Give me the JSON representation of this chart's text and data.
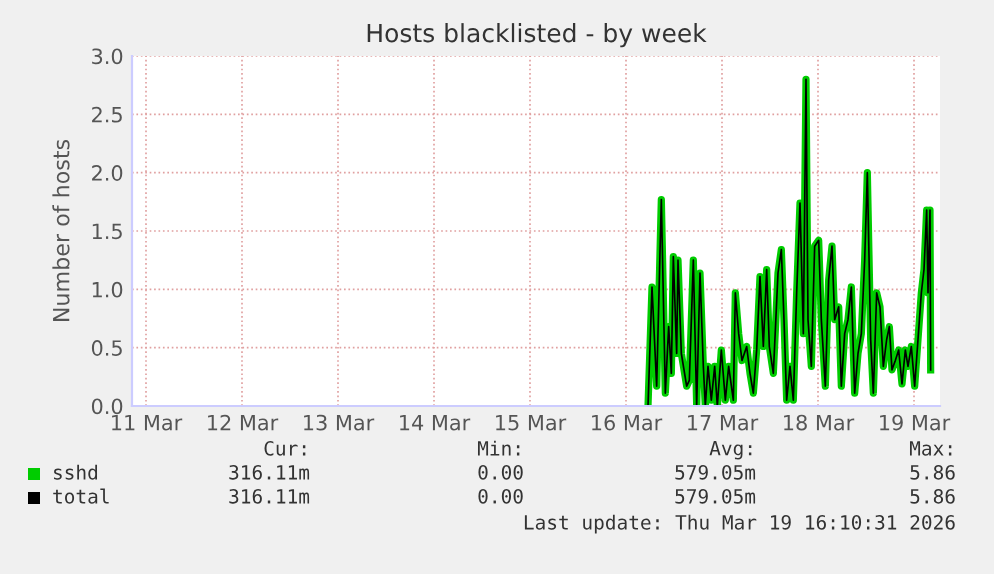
{
  "chart_data": {
    "type": "line",
    "title": "Hosts blacklisted - by week",
    "ylabel": "Number of hosts",
    "x": [
      "2026-03-16T17:30",
      "2026-03-16T18:30",
      "2026-03-16T19:40",
      "2026-03-16T20:50",
      "2026-03-16T21:50",
      "2026-03-16T22:40",
      "2026-03-16T23:20",
      "2026-03-16T23:50",
      "2026-03-17T00:40",
      "2026-03-17T01:00",
      "2026-03-17T01:50",
      "2026-03-17T03:10",
      "2026-03-17T03:50",
      "2026-03-17T04:50",
      "2026-03-17T05:40",
      "2026-03-17T06:30",
      "2026-03-17T07:20",
      "2026-03-17T07:50",
      "2026-03-17T08:30",
      "2026-03-17T09:20",
      "2026-03-17T10:10",
      "2026-03-17T10:50",
      "2026-03-17T11:50",
      "2026-03-17T12:50",
      "2026-03-17T13:40",
      "2026-03-17T14:50",
      "2026-03-17T15:20",
      "2026-03-17T16:10",
      "2026-03-17T17:00",
      "2026-03-17T18:10",
      "2026-03-17T19:00",
      "2026-03-17T19:50",
      "2026-03-17T20:40",
      "2026-03-17T21:30",
      "2026-03-17T22:20",
      "2026-03-17T23:10",
      "2026-03-17T23:50",
      "2026-03-18T00:50",
      "2026-03-18T02:00",
      "2026-03-18T02:50",
      "2026-03-18T03:30",
      "2026-03-18T04:10",
      "2026-03-18T05:00",
      "2026-03-18T05:50",
      "2026-03-18T06:40",
      "2026-03-18T07:30",
      "2026-03-18T08:20",
      "2026-03-18T09:00",
      "2026-03-18T09:30",
      "2026-03-18T10:20",
      "2026-03-18T11:10",
      "2026-03-18T12:10",
      "2026-03-18T12:50",
      "2026-03-18T13:50",
      "2026-03-18T14:40",
      "2026-03-18T15:30",
      "2026-03-18T16:10",
      "2026-03-18T17:10",
      "2026-03-18T17:50",
      "2026-03-18T18:40",
      "2026-03-18T19:30",
      "2026-03-18T20:20",
      "2026-03-18T21:10",
      "2026-03-18T22:00",
      "2026-03-18T22:50",
      "2026-03-18T23:40",
      "2026-03-19T00:20",
      "2026-03-19T01:10",
      "2026-03-19T01:50",
      "2026-03-19T02:40",
      "2026-03-19T03:30",
      "2026-03-19T04:20",
      "2026-03-19T05:10",
      "2026-03-19T05:50",
      "2026-03-19T06:30",
      "2026-03-19T07:20",
      "2026-03-19T08:10",
      "2026-03-19T09:00",
      "2026-03-19T09:50",
      "2026-03-19T10:30",
      "2026-03-19T11:20",
      "2026-03-19T12:10",
      "2026-03-19T13:00",
      "2026-03-19T13:50",
      "2026-03-19T14:30",
      "2026-03-19T15:10",
      "2026-03-19T15:30",
      "2026-03-19T16:00",
      "2026-03-19T16:10"
    ],
    "series": [
      {
        "name": "sshd",
        "color": "#00cc00",
        "values": [
          0,
          1.02,
          0.17,
          1.77,
          0.11,
          0.68,
          0.28,
          1.28,
          0.45,
          1.25,
          0.45,
          0.17,
          0.22,
          1.25,
          0,
          1.14,
          0.34,
          0,
          0.34,
          0.05,
          0.34,
          0,
          0.48,
          0.05,
          0.34,
          0.05,
          0.97,
          0.62,
          0.39,
          0.51,
          0.28,
          0.11,
          0.48,
          1.11,
          0.51,
          1.17,
          0.51,
          0.28,
          1.14,
          1.34,
          0.74,
          0.05,
          0.34,
          0.05,
          0.97,
          1.74,
          0.62,
          2.8,
          0.74,
          0.34,
          1.37,
          1.42,
          0.74,
          0.17,
          1.08,
          1.37,
          0.74,
          0.85,
          0.17,
          0.62,
          0.74,
          1.02,
          0.11,
          0.45,
          0.62,
          1.25,
          2.0,
          0.57,
          0.11,
          0.97,
          0.85,
          0.34,
          0.57,
          0.68,
          0.31,
          0.39,
          0.48,
          0.19,
          0.48,
          0.34,
          0.51,
          0.17,
          0.57,
          0.97,
          1.17,
          1.68,
          0.97,
          1.68,
          0.31
        ]
      },
      {
        "name": "total",
        "color": "#000000",
        "values": [
          0,
          1.02,
          0.17,
          1.77,
          0.11,
          0.68,
          0.28,
          1.28,
          0.45,
          1.25,
          0.45,
          0.17,
          0.22,
          1.25,
          0,
          1.14,
          0.34,
          0,
          0.34,
          0.05,
          0.34,
          0,
          0.48,
          0.05,
          0.34,
          0.05,
          0.97,
          0.62,
          0.39,
          0.51,
          0.28,
          0.11,
          0.48,
          1.11,
          0.51,
          1.17,
          0.51,
          0.28,
          1.14,
          1.34,
          0.74,
          0.05,
          0.34,
          0.05,
          0.97,
          1.74,
          0.62,
          2.8,
          0.74,
          0.34,
          1.37,
          1.42,
          0.74,
          0.17,
          1.08,
          1.37,
          0.74,
          0.85,
          0.17,
          0.62,
          0.74,
          1.02,
          0.11,
          0.45,
          0.62,
          1.25,
          2.0,
          0.57,
          0.11,
          0.97,
          0.85,
          0.34,
          0.57,
          0.68,
          0.31,
          0.39,
          0.48,
          0.19,
          0.48,
          0.34,
          0.51,
          0.17,
          0.57,
          0.97,
          1.17,
          1.68,
          0.97,
          1.68,
          0.31
        ]
      }
    ],
    "xlim": [
      "2026-03-11T08:30",
      "2026-03-19T18:30"
    ],
    "xticks": [
      {
        "value": "2026-03-11T12:00",
        "label": "11 Mar"
      },
      {
        "value": "2026-03-12T12:00",
        "label": "12 Mar"
      },
      {
        "value": "2026-03-13T12:00",
        "label": "13 Mar"
      },
      {
        "value": "2026-03-14T12:00",
        "label": "14 Mar"
      },
      {
        "value": "2026-03-15T12:00",
        "label": "15 Mar"
      },
      {
        "value": "2026-03-16T12:00",
        "label": "16 Mar"
      },
      {
        "value": "2026-03-17T12:00",
        "label": "17 Mar"
      },
      {
        "value": "2026-03-18T12:00",
        "label": "18 Mar"
      },
      {
        "value": "2026-03-19T12:00",
        "label": "19 Mar"
      }
    ],
    "ylim": [
      0,
      3
    ],
    "yticks": [
      {
        "value": 0,
        "label": "0.0"
      },
      {
        "value": 0.5,
        "label": "0.5"
      },
      {
        "value": 1,
        "label": "1.0"
      },
      {
        "value": 1.5,
        "label": "1.5"
      },
      {
        "value": 2,
        "label": "2.0"
      },
      {
        "value": 2.5,
        "label": "2.5"
      },
      {
        "value": 3,
        "label": "3.0"
      }
    ],
    "grid": true,
    "legend": "bottom left",
    "marker": "none",
    "line_style": "solid",
    "annotations": [
      "Cur:",
      "Min:",
      "Avg:",
      "Max:",
      "316.11m",
      "0.00",
      "579.05m",
      "5.86",
      "316.11m",
      "0.00",
      "579.05m",
      "5.86",
      "Last update: Thu Mar 19 16:10:31 2026"
    ]
  }
}
